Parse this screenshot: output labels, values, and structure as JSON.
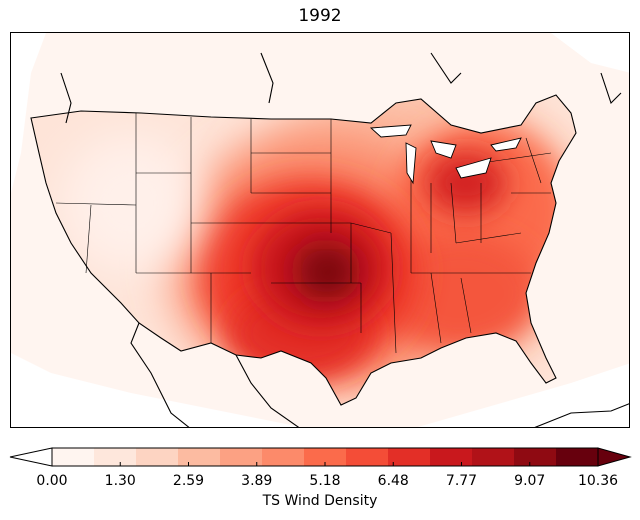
{
  "title": "1992",
  "map": {
    "variable": "TS Wind Density",
    "colormap": "Reds",
    "max_core_color": "#67000d"
  },
  "colorbar": {
    "label": "TS Wind Density",
    "ticks": [
      "0.00",
      "1.30",
      "2.59",
      "3.89",
      "5.18",
      "6.48",
      "7.77",
      "9.07",
      "10.36"
    ],
    "min": 0.0,
    "max": 10.36,
    "extend": "both",
    "colors": [
      "#fff5f0",
      "#fee7dc",
      "#fdd4c2",
      "#fcbba1",
      "#fca183",
      "#fc8a6a",
      "#fb6b4b",
      "#f44d37",
      "#e32f27",
      "#c9181d",
      "#b11218",
      "#8f0a12",
      "#67000d"
    ]
  }
}
